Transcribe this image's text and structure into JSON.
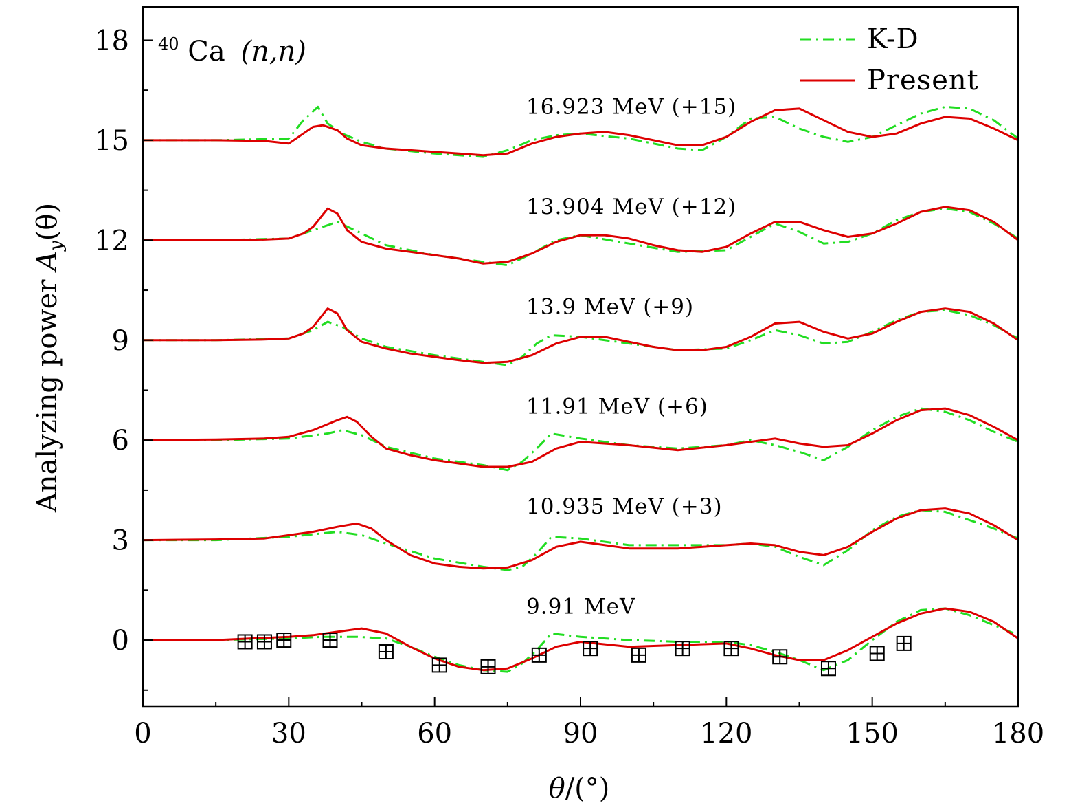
{
  "chart_data": {
    "type": "line",
    "title": "40Ca (n,n)",
    "title_parts": {
      "mass": "40",
      "element": "Ca",
      "reaction": "(n,n)"
    },
    "xlabel": "θ/(°)",
    "ylabel": "Analyzing power A_y(θ)",
    "ylabel_parts": {
      "text": "Analyzing power ",
      "symbol": "A",
      "subscript": "y",
      "arg": "(θ)"
    },
    "xlim": [
      0,
      180
    ],
    "ylim": [
      -2,
      19
    ],
    "x_ticks": [
      0,
      30,
      60,
      90,
      120,
      150,
      180
    ],
    "y_ticks": [
      0,
      3,
      6,
      9,
      12,
      15,
      18
    ],
    "x_tick_labels": [
      "0",
      "30",
      "60",
      "90",
      "120",
      "150",
      "180"
    ],
    "y_tick_labels": [
      "0",
      "3",
      "6",
      "9",
      "12",
      "15",
      "18"
    ],
    "grid": false,
    "legend": {
      "placement": "top-right",
      "entries": [
        {
          "label": "K-D",
          "color": "#22dd22",
          "style": "dash-dot"
        },
        {
          "label": "Present",
          "color": "#dd0000",
          "style": "solid"
        }
      ]
    },
    "curves": [
      {
        "energy_label": "9.91 MeV",
        "offset": 0,
        "kd_x": [
          0,
          15,
          30,
          37,
          44,
          50,
          55,
          60,
          65,
          70,
          75,
          78,
          81,
          84,
          90,
          100,
          110,
          120,
          125,
          130,
          135,
          140,
          145,
          150,
          155,
          160,
          165,
          170,
          175,
          180
        ],
        "kd_y": [
          0,
          0,
          0.05,
          0.1,
          0.1,
          0.05,
          -0.2,
          -0.5,
          -0.75,
          -0.9,
          -0.95,
          -0.7,
          -0.3,
          0.2,
          0.1,
          0,
          -0.05,
          -0.05,
          -0.15,
          -0.35,
          -0.6,
          -0.9,
          -0.6,
          0,
          0.55,
          0.9,
          0.95,
          0.75,
          0.45,
          0.15
        ],
        "present_x": [
          0,
          15,
          30,
          35,
          40,
          45,
          50,
          55,
          60,
          65,
          70,
          75,
          80,
          85,
          90,
          100,
          110,
          120,
          125,
          130,
          135,
          140,
          145,
          150,
          155,
          160,
          165,
          170,
          175,
          180
        ],
        "present_y": [
          0,
          0,
          0.1,
          0.15,
          0.25,
          0.35,
          0.2,
          -0.2,
          -0.55,
          -0.8,
          -0.9,
          -0.85,
          -0.55,
          -0.2,
          -0.05,
          -0.2,
          -0.15,
          -0.1,
          -0.25,
          -0.45,
          -0.6,
          -0.6,
          -0.3,
          0.1,
          0.5,
          0.8,
          0.95,
          0.85,
          0.55,
          0.05
        ],
        "data_x": [
          21,
          25,
          29,
          38.5,
          50,
          61,
          71,
          81.5,
          92,
          102,
          111,
          121,
          131,
          141,
          151,
          156.5
        ],
        "data_y": [
          -0.05,
          -0.05,
          0,
          0,
          -0.35,
          -0.75,
          -0.8,
          -0.45,
          -0.25,
          -0.45,
          -0.25,
          -0.25,
          -0.5,
          -0.85,
          -0.4,
          -0.1
        ]
      },
      {
        "energy_label": "10.935 MeV (+3)",
        "offset": 3,
        "kd_x": [
          0,
          15,
          30,
          40,
          45,
          50,
          60,
          70,
          75,
          78,
          81,
          84,
          90,
          100,
          110,
          120,
          125,
          130,
          135,
          140,
          145,
          150,
          155,
          160,
          165,
          170,
          175,
          180
        ],
        "kd_y": [
          3,
          3,
          3.1,
          3.25,
          3.15,
          2.9,
          2.45,
          2.2,
          2.1,
          2.2,
          2.6,
          3.1,
          3.05,
          2.85,
          2.85,
          2.85,
          2.9,
          2.8,
          2.5,
          2.25,
          2.7,
          3.3,
          3.7,
          3.9,
          3.85,
          3.6,
          3.35,
          3.05
        ],
        "present_x": [
          0,
          15,
          25,
          35,
          40,
          44,
          47,
          50,
          55,
          60,
          65,
          70,
          75,
          80,
          85,
          90,
          100,
          110,
          120,
          125,
          130,
          135,
          140,
          145,
          150,
          155,
          160,
          165,
          170,
          175,
          180
        ],
        "present_y": [
          3,
          3.02,
          3.05,
          3.25,
          3.4,
          3.5,
          3.35,
          3,
          2.55,
          2.3,
          2.2,
          2.15,
          2.18,
          2.4,
          2.8,
          2.95,
          2.75,
          2.75,
          2.85,
          2.9,
          2.85,
          2.65,
          2.55,
          2.8,
          3.25,
          3.65,
          3.9,
          3.95,
          3.8,
          3.45,
          3
        ]
      },
      {
        "energy_label": "11.91 MeV (+6)",
        "offset": 6,
        "kd_x": [
          0,
          15,
          30,
          38,
          41,
          45,
          50,
          60,
          70,
          75,
          78,
          81,
          84,
          90,
          100,
          110,
          120,
          125,
          130,
          135,
          140,
          145,
          150,
          155,
          160,
          165,
          170,
          175,
          180
        ],
        "kd_y": [
          6,
          6,
          6.05,
          6.2,
          6.3,
          6.15,
          5.8,
          5.45,
          5.25,
          5.1,
          5.35,
          5.75,
          6.2,
          6.05,
          5.85,
          5.75,
          5.85,
          6,
          5.85,
          5.65,
          5.4,
          5.8,
          6.3,
          6.7,
          6.95,
          6.85,
          6.6,
          6.25,
          5.95
        ],
        "present_x": [
          0,
          15,
          25,
          30,
          35,
          40,
          42,
          44,
          47,
          50,
          55,
          60,
          65,
          70,
          75,
          80,
          85,
          90,
          100,
          110,
          120,
          125,
          130,
          135,
          140,
          145,
          150,
          155,
          160,
          165,
          170,
          175,
          180
        ],
        "present_y": [
          6,
          6.02,
          6.05,
          6.1,
          6.3,
          6.6,
          6.7,
          6.55,
          6.1,
          5.75,
          5.55,
          5.4,
          5.3,
          5.2,
          5.2,
          5.35,
          5.75,
          5.95,
          5.85,
          5.7,
          5.85,
          5.95,
          6.05,
          5.9,
          5.8,
          5.85,
          6.2,
          6.6,
          6.9,
          6.95,
          6.75,
          6.4,
          6
        ]
      },
      {
        "energy_label": "13.9 MeV (+9)",
        "offset": 9,
        "kd_x": [
          0,
          15,
          30,
          35,
          38,
          41,
          45,
          50,
          60,
          70,
          75,
          78,
          81,
          84,
          90,
          100,
          110,
          120,
          125,
          130,
          135,
          140,
          145,
          150,
          155,
          160,
          165,
          170,
          175,
          180
        ],
        "kd_y": [
          9,
          9,
          9.05,
          9.3,
          9.55,
          9.4,
          9.05,
          8.8,
          8.55,
          8.35,
          8.25,
          8.5,
          8.9,
          9.15,
          9.1,
          8.9,
          8.7,
          8.75,
          9,
          9.3,
          9.15,
          8.9,
          8.95,
          9.25,
          9.6,
          9.85,
          9.9,
          9.75,
          9.45,
          9.05
        ],
        "present_x": [
          0,
          15,
          25,
          30,
          33,
          35,
          38,
          40,
          42,
          45,
          50,
          55,
          60,
          65,
          70,
          75,
          80,
          85,
          90,
          95,
          100,
          105,
          110,
          115,
          120,
          125,
          130,
          135,
          140,
          145,
          150,
          155,
          160,
          165,
          170,
          175,
          180
        ],
        "present_y": [
          9,
          9,
          9.02,
          9.05,
          9.2,
          9.4,
          9.95,
          9.8,
          9.3,
          8.95,
          8.75,
          8.6,
          8.5,
          8.4,
          8.32,
          8.35,
          8.55,
          8.9,
          9.1,
          9.1,
          8.95,
          8.8,
          8.7,
          8.7,
          8.8,
          9.1,
          9.5,
          9.55,
          9.25,
          9.05,
          9.2,
          9.55,
          9.85,
          9.95,
          9.85,
          9.5,
          9
        ]
      },
      {
        "energy_label": "13.904 MeV (+12)",
        "offset": 12,
        "kd_x": [
          0,
          15,
          30,
          35,
          40,
          45,
          50,
          60,
          70,
          75,
          80,
          85,
          90,
          100,
          110,
          120,
          125,
          130,
          135,
          140,
          145,
          150,
          155,
          160,
          165,
          170,
          175,
          180
        ],
        "kd_y": [
          12,
          12,
          12.05,
          12.3,
          12.55,
          12.2,
          11.85,
          11.55,
          11.35,
          11.25,
          11.6,
          12,
          12.15,
          11.9,
          11.65,
          11.7,
          12.1,
          12.5,
          12.25,
          11.9,
          11.95,
          12.2,
          12.6,
          12.85,
          12.95,
          12.85,
          12.5,
          12.05
        ],
        "present_x": [
          0,
          15,
          25,
          30,
          33,
          35,
          38,
          40,
          42,
          45,
          50,
          55,
          60,
          65,
          70,
          75,
          80,
          85,
          90,
          95,
          100,
          105,
          110,
          115,
          120,
          125,
          130,
          135,
          140,
          145,
          150,
          155,
          160,
          165,
          170,
          175,
          180
        ],
        "present_y": [
          12,
          12,
          12.02,
          12.05,
          12.2,
          12.4,
          12.95,
          12.8,
          12.3,
          11.95,
          11.75,
          11.65,
          11.55,
          11.45,
          11.3,
          11.35,
          11.6,
          11.95,
          12.15,
          12.15,
          12.05,
          11.85,
          11.7,
          11.65,
          11.8,
          12.2,
          12.55,
          12.55,
          12.3,
          12.1,
          12.2,
          12.5,
          12.85,
          13,
          12.9,
          12.55,
          12
        ]
      },
      {
        "energy_label": "16.923 MeV (+15)",
        "offset": 15,
        "kd_x": [
          0,
          15,
          30,
          33,
          36,
          38,
          41,
          45,
          50,
          60,
          70,
          75,
          80,
          85,
          90,
          100,
          110,
          115,
          120,
          125,
          130,
          135,
          140,
          145,
          150,
          155,
          160,
          165,
          170,
          175,
          180
        ],
        "kd_y": [
          15,
          15,
          15.05,
          15.6,
          16,
          15.5,
          15.2,
          14.95,
          14.75,
          14.6,
          14.5,
          14.7,
          15,
          15.15,
          15.2,
          15.05,
          14.75,
          14.7,
          15.1,
          15.65,
          15.7,
          15.35,
          15.1,
          14.95,
          15.1,
          15.45,
          15.8,
          16,
          15.95,
          15.6,
          15.05
        ],
        "present_x": [
          0,
          15,
          25,
          30,
          33,
          35,
          37,
          40,
          42,
          45,
          50,
          55,
          60,
          65,
          70,
          75,
          80,
          85,
          90,
          95,
          100,
          105,
          110,
          115,
          120,
          125,
          130,
          135,
          140,
          145,
          150,
          155,
          160,
          165,
          170,
          175,
          180
        ],
        "present_y": [
          15,
          15,
          14.98,
          14.9,
          15.2,
          15.4,
          15.45,
          15.3,
          15.05,
          14.85,
          14.75,
          14.7,
          14.65,
          14.6,
          14.55,
          14.6,
          14.9,
          15.1,
          15.2,
          15.25,
          15.15,
          15,
          14.85,
          14.85,
          15.1,
          15.55,
          15.9,
          15.95,
          15.6,
          15.25,
          15.1,
          15.2,
          15.5,
          15.7,
          15.65,
          15.35,
          15
        ]
      }
    ]
  },
  "colors": {
    "kd": "#22dd22",
    "present": "#dd0000",
    "axis": "#000000",
    "marker": "#000000"
  }
}
